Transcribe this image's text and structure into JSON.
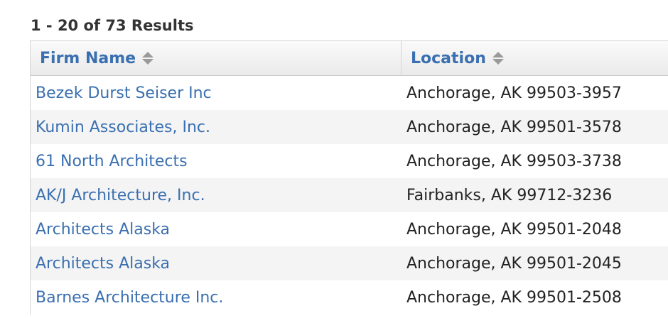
{
  "results": {
    "count_text": "1 - 20 of 73 Results"
  },
  "table": {
    "columns": {
      "firm_name": "Firm Name",
      "location": "Location"
    },
    "rows": [
      {
        "firm": "Bezek Durst Seiser Inc",
        "location": "Anchorage, AK 99503-3957"
      },
      {
        "firm": "Kumin Associates, Inc.",
        "location": "Anchorage, AK 99501-3578"
      },
      {
        "firm": "61 North Architects",
        "location": "Anchorage, AK 99503-3738"
      },
      {
        "firm": "AK/J Architecture, Inc.",
        "location": "Fairbanks, AK 99712-3236"
      },
      {
        "firm": "Architects Alaska",
        "location": "Anchorage, AK 99501-2048"
      },
      {
        "firm": "Architects Alaska",
        "location": "Anchorage, AK 99501-2045"
      },
      {
        "firm": "Barnes Architecture Inc.",
        "location": "Anchorage, AK 99501-2508"
      }
    ]
  },
  "colors": {
    "link": "#3a6fb0",
    "header_bg": "#eaeaea",
    "alt_row": "#f4f4f4"
  }
}
